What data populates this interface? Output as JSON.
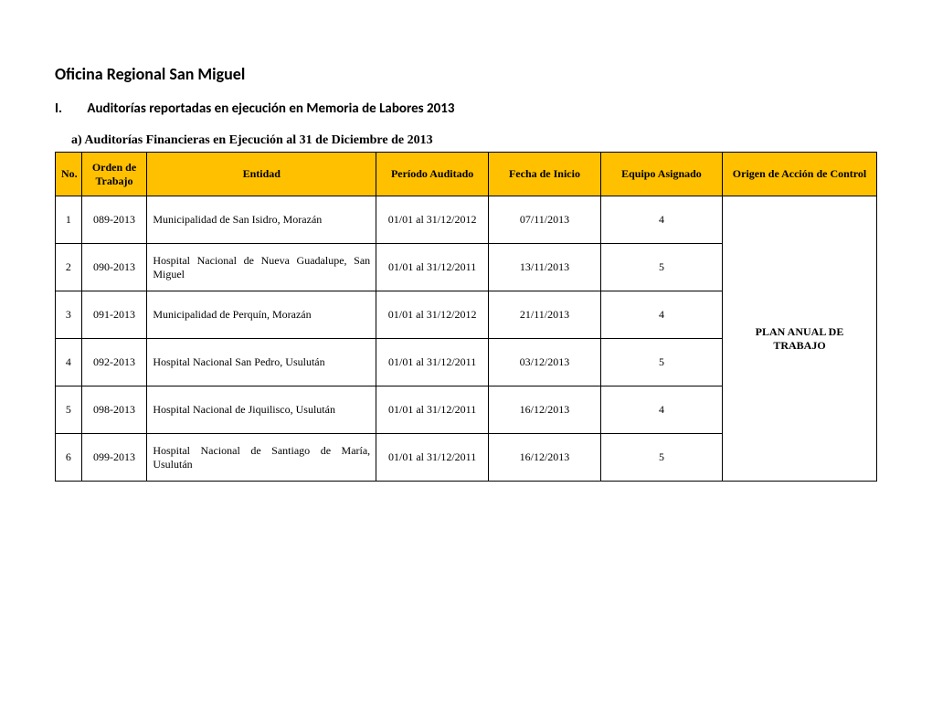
{
  "title": "Oficina Regional San Miguel",
  "section_num": "I.",
  "section_text": "Auditorías reportadas en ejecución en Memoria de Labores 2013",
  "subheading": "a) Auditorías Financieras en Ejecución al 31 de Diciembre de 2013",
  "table": {
    "columns": {
      "no": "No.",
      "orden": "Orden de Trabajo",
      "entidad": "Entidad",
      "periodo": "Período Auditado",
      "fecha": "Fecha de Inicio",
      "equipo": "Equipo Asignado",
      "origen": "Origen de Acción de Control"
    },
    "origen_merged": "PLAN ANUAL DE TRABAJO",
    "rows": [
      {
        "no": "1",
        "orden": "089-2013",
        "entidad": "Municipalidad de San Isidro, Morazán",
        "periodo": "01/01 al 31/12/2012",
        "fecha": "07/11/2013",
        "equipo": "4"
      },
      {
        "no": "2",
        "orden": "090-2013",
        "entidad": "Hospital Nacional de Nueva Guadalupe, San Miguel",
        "periodo": "01/01 al 31/12/2011",
        "fecha": "13/11/2013",
        "equipo": "5"
      },
      {
        "no": "3",
        "orden": "091-2013",
        "entidad": "Municipalidad de Perquín, Morazán",
        "periodo": "01/01 al 31/12/2012",
        "fecha": "21/11/2013",
        "equipo": "4"
      },
      {
        "no": "4",
        "orden": "092-2013",
        "entidad": "Hospital Nacional San Pedro, Usulután",
        "periodo": "01/01 al 31/12/2011",
        "fecha": "03/12/2013",
        "equipo": "5"
      },
      {
        "no": "5",
        "orden": "098-2013",
        "entidad": "Hospital Nacional de Jiquilisco, Usulután",
        "periodo": "01/01 al 31/12/2011",
        "fecha": "16/12/2013",
        "equipo": "4"
      },
      {
        "no": "6",
        "orden": "099-2013",
        "entidad": "Hospital Nacional de Santiago de María, Usulután",
        "periodo": "01/01 al 31/12/2011",
        "fecha": "16/12/2013",
        "equipo": "5"
      }
    ]
  },
  "style": {
    "header_bg": "#ffc000",
    "border_color": "#000000",
    "page_bg": "#ffffff",
    "title_font": "Calibri",
    "body_font": "Times New Roman",
    "title_fontsize": 18,
    "section_fontsize": 15,
    "subheading_fontsize": 14,
    "table_fontsize": 12,
    "origen_fontsize": 18
  }
}
